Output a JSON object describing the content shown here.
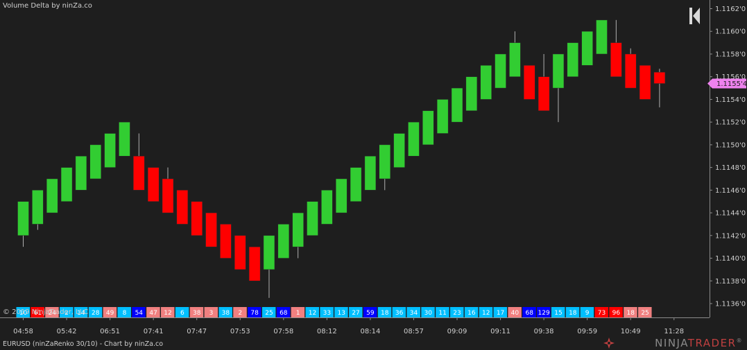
{
  "header": {
    "indicator_title": "Volume Delta by ninZa.co",
    "copyright": "© 2019 NinjaTrader, LLC"
  },
  "footer": {
    "instrument": "EURUSD (ninZaRenko 30/10) - Chart by ninZa.co",
    "logo_ninja": "NINJA",
    "logo_trader": "TRADER",
    "logo_reg": "®"
  },
  "icons": {
    "nav": "skip-to-end-icon",
    "logo": "ninja-star-icon"
  },
  "colors": {
    "background": "#1e1e1e",
    "up_candle": "#32cd32",
    "down_candle": "#ff0000",
    "wick": "#b0b0b0",
    "axis_text": "#cfcfcf",
    "price_marker": "#ee82ee",
    "delta_positive_strong": "#0000ff",
    "delta_positive": "#00bfff",
    "delta_negative_strong": "#ff0000",
    "delta_negative": "#f08080"
  },
  "chart_data": {
    "type": "candlestick",
    "brick_size": 0.0003,
    "ylim": [
      1.11355,
      1.11625
    ],
    "current_price": 1.11554,
    "current_price_label": "1.1155'4",
    "y_ticks": [
      {
        "value": 1.1136,
        "label": "1.1136'0"
      },
      {
        "value": 1.1138,
        "label": "1.1138'0"
      },
      {
        "value": 1.114,
        "label": "1.1140'0"
      },
      {
        "value": 1.1142,
        "label": "1.1142'0"
      },
      {
        "value": 1.1144,
        "label": "1.1144'0"
      },
      {
        "value": 1.1146,
        "label": "1.1146'0"
      },
      {
        "value": 1.1148,
        "label": "1.1148'0"
      },
      {
        "value": 1.115,
        "label": "1.1150'0"
      },
      {
        "value": 1.1152,
        "label": "1.1152'0"
      },
      {
        "value": 1.1154,
        "label": "1.1154'0"
      },
      {
        "value": 1.1156,
        "label": "1.1156'0"
      },
      {
        "value": 1.1158,
        "label": "1.1158'0"
      },
      {
        "value": 1.116,
        "label": "1.1160'0"
      },
      {
        "value": 1.1162,
        "label": "1.1162'0"
      }
    ],
    "x_ticks": [
      {
        "bar": 0,
        "label": "04:58"
      },
      {
        "bar": 3,
        "label": "05:42"
      },
      {
        "bar": 6,
        "label": "06:51"
      },
      {
        "bar": 9,
        "label": "07:41"
      },
      {
        "bar": 12,
        "label": "07:47"
      },
      {
        "bar": 15,
        "label": "07:53"
      },
      {
        "bar": 18,
        "label": "07:58"
      },
      {
        "bar": 21,
        "label": "08:12"
      },
      {
        "bar": 24,
        "label": "08:14"
      },
      {
        "bar": 27,
        "label": "08:57"
      },
      {
        "bar": 30,
        "label": "09:09"
      },
      {
        "bar": 33,
        "label": "09:11"
      },
      {
        "bar": 36,
        "label": "09:38"
      },
      {
        "bar": 39,
        "label": "09:59"
      },
      {
        "bar": 42,
        "label": "10:49"
      },
      {
        "bar": 45,
        "label": "11:28"
      }
    ],
    "candles": [
      {
        "open": 1.1142,
        "close": 1.1145,
        "high": 1.1145,
        "low": 1.1141
      },
      {
        "open": 1.1143,
        "close": 1.1146,
        "high": 1.1146,
        "low": 1.11425
      },
      {
        "open": 1.1144,
        "close": 1.1147,
        "high": 1.1147,
        "low": 1.1144
      },
      {
        "open": 1.1145,
        "close": 1.1148,
        "high": 1.1148,
        "low": 1.1145
      },
      {
        "open": 1.1146,
        "close": 1.1149,
        "high": 1.1149,
        "low": 1.1146
      },
      {
        "open": 1.1147,
        "close": 1.115,
        "high": 1.115,
        "low": 1.1147
      },
      {
        "open": 1.1148,
        "close": 1.1151,
        "high": 1.1151,
        "low": 1.1148
      },
      {
        "open": 1.1149,
        "close": 1.1152,
        "high": 1.1152,
        "low": 1.1149
      },
      {
        "open": 1.1149,
        "close": 1.1146,
        "high": 1.1151,
        "low": 1.1146
      },
      {
        "open": 1.1148,
        "close": 1.1145,
        "high": 1.1148,
        "low": 1.1145
      },
      {
        "open": 1.1147,
        "close": 1.1144,
        "high": 1.1148,
        "low": 1.1144
      },
      {
        "open": 1.1146,
        "close": 1.1143,
        "high": 1.1146,
        "low": 1.1143
      },
      {
        "open": 1.1145,
        "close": 1.1142,
        "high": 1.1145,
        "low": 1.1142
      },
      {
        "open": 1.1144,
        "close": 1.1141,
        "high": 1.1144,
        "low": 1.1141
      },
      {
        "open": 1.1143,
        "close": 1.114,
        "high": 1.1143,
        "low": 1.114
      },
      {
        "open": 1.1142,
        "close": 1.1139,
        "high": 1.1142,
        "low": 1.1139
      },
      {
        "open": 1.1141,
        "close": 1.1138,
        "high": 1.1141,
        "low": 1.1138
      },
      {
        "open": 1.1139,
        "close": 1.1142,
        "high": 1.1142,
        "low": 1.11365
      },
      {
        "open": 1.114,
        "close": 1.1143,
        "high": 1.1143,
        "low": 1.114
      },
      {
        "open": 1.1141,
        "close": 1.1144,
        "high": 1.1144,
        "low": 1.114
      },
      {
        "open": 1.1142,
        "close": 1.1145,
        "high": 1.1145,
        "low": 1.1142
      },
      {
        "open": 1.1143,
        "close": 1.1146,
        "high": 1.1146,
        "low": 1.1143
      },
      {
        "open": 1.1144,
        "close": 1.1147,
        "high": 1.1147,
        "low": 1.1144
      },
      {
        "open": 1.1145,
        "close": 1.1148,
        "high": 1.1148,
        "low": 1.1145
      },
      {
        "open": 1.1146,
        "close": 1.1149,
        "high": 1.1149,
        "low": 1.1146
      },
      {
        "open": 1.1147,
        "close": 1.115,
        "high": 1.115,
        "low": 1.1146
      },
      {
        "open": 1.1148,
        "close": 1.1151,
        "high": 1.1151,
        "low": 1.1148
      },
      {
        "open": 1.1149,
        "close": 1.1152,
        "high": 1.1152,
        "low": 1.1149
      },
      {
        "open": 1.115,
        "close": 1.1153,
        "high": 1.1153,
        "low": 1.115
      },
      {
        "open": 1.1151,
        "close": 1.1154,
        "high": 1.1154,
        "low": 1.1151
      },
      {
        "open": 1.1152,
        "close": 1.1155,
        "high": 1.1155,
        "low": 1.1152
      },
      {
        "open": 1.1153,
        "close": 1.1156,
        "high": 1.1156,
        "low": 1.1153
      },
      {
        "open": 1.1154,
        "close": 1.1157,
        "high": 1.1157,
        "low": 1.1154
      },
      {
        "open": 1.1155,
        "close": 1.1158,
        "high": 1.1158,
        "low": 1.1155
      },
      {
        "open": 1.1156,
        "close": 1.1159,
        "high": 1.116,
        "low": 1.1156
      },
      {
        "open": 1.1157,
        "close": 1.1154,
        "high": 1.1157,
        "low": 1.1154
      },
      {
        "open": 1.1156,
        "close": 1.1153,
        "high": 1.1158,
        "low": 1.1153
      },
      {
        "open": 1.1155,
        "close": 1.1158,
        "high": 1.1158,
        "low": 1.1152
      },
      {
        "open": 1.1156,
        "close": 1.1159,
        "high": 1.1159,
        "low": 1.1156
      },
      {
        "open": 1.1157,
        "close": 1.116,
        "high": 1.116,
        "low": 1.1157
      },
      {
        "open": 1.1158,
        "close": 1.1161,
        "high": 1.1161,
        "low": 1.1158
      },
      {
        "open": 1.1159,
        "close": 1.1156,
        "high": 1.1161,
        "low": 1.1156
      },
      {
        "open": 1.1158,
        "close": 1.1155,
        "high": 1.11585,
        "low": 1.1155
      },
      {
        "open": 1.1157,
        "close": 1.1154,
        "high": 1.1157,
        "low": 1.1154
      },
      {
        "open": 1.11564,
        "close": 1.11554,
        "high": 1.11567,
        "low": 1.11533
      }
    ],
    "delta": [
      {
        "value": "10",
        "color": "#00bfff"
      },
      {
        "value": "61",
        "color": "#ff0000"
      },
      {
        "value": "24",
        "color": "#f08080"
      },
      {
        "value": "2",
        "color": "#00bfff"
      },
      {
        "value": "14",
        "color": "#00bfff"
      },
      {
        "value": "28",
        "color": "#00bfff"
      },
      {
        "value": "49",
        "color": "#f08080"
      },
      {
        "value": "8",
        "color": "#00bfff"
      },
      {
        "value": "54",
        "color": "#0000ff"
      },
      {
        "value": "47",
        "color": "#f08080"
      },
      {
        "value": "12",
        "color": "#f08080"
      },
      {
        "value": "6",
        "color": "#00bfff"
      },
      {
        "value": "38",
        "color": "#f08080"
      },
      {
        "value": "3",
        "color": "#f08080"
      },
      {
        "value": "38",
        "color": "#00bfff"
      },
      {
        "value": "2",
        "color": "#f08080"
      },
      {
        "value": "78",
        "color": "#0000ff"
      },
      {
        "value": "25",
        "color": "#00bfff"
      },
      {
        "value": "68",
        "color": "#0000ff"
      },
      {
        "value": "1",
        "color": "#f08080"
      },
      {
        "value": "12",
        "color": "#00bfff"
      },
      {
        "value": "33",
        "color": "#00bfff"
      },
      {
        "value": "13",
        "color": "#00bfff"
      },
      {
        "value": "27",
        "color": "#00bfff"
      },
      {
        "value": "59",
        "color": "#0000ff"
      },
      {
        "value": "18",
        "color": "#00bfff"
      },
      {
        "value": "36",
        "color": "#00bfff"
      },
      {
        "value": "34",
        "color": "#00bfff"
      },
      {
        "value": "30",
        "color": "#00bfff"
      },
      {
        "value": "11",
        "color": "#00bfff"
      },
      {
        "value": "23",
        "color": "#00bfff"
      },
      {
        "value": "16",
        "color": "#00bfff"
      },
      {
        "value": "12",
        "color": "#00bfff"
      },
      {
        "value": "17",
        "color": "#00bfff"
      },
      {
        "value": "40",
        "color": "#f08080"
      },
      {
        "value": "68",
        "color": "#0000ff"
      },
      {
        "value": "129",
        "color": "#0000ff"
      },
      {
        "value": "15",
        "color": "#00bfff"
      },
      {
        "value": "18",
        "color": "#00bfff"
      },
      {
        "value": "9",
        "color": "#00bfff"
      },
      {
        "value": "73",
        "color": "#ff0000"
      },
      {
        "value": "96",
        "color": "#ff0000"
      },
      {
        "value": "18",
        "color": "#f08080"
      },
      {
        "value": "25",
        "color": "#f08080"
      }
    ]
  }
}
